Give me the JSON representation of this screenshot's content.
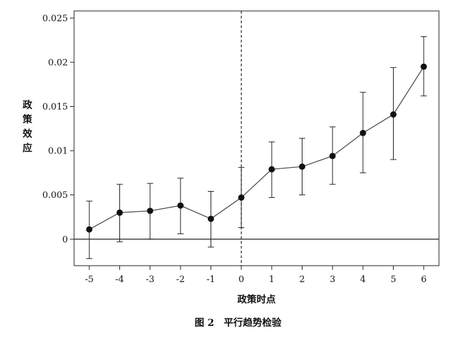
{
  "chart_data": {
    "type": "line",
    "caption": "图 2　平行趋势检验",
    "xlabel": "政策时点",
    "ylabel": "政策效应",
    "x": [
      -5,
      -4,
      -3,
      -2,
      -1,
      0,
      1,
      2,
      3,
      4,
      5,
      6
    ],
    "x_tick_labels": [
      "-5",
      "-4",
      "-3",
      "-2",
      "-1",
      "0",
      "1",
      "2",
      "3",
      "4",
      "5",
      "6"
    ],
    "y_ticks": [
      0,
      0.005,
      0.01,
      0.015,
      0.02,
      0.025
    ],
    "y_tick_labels": [
      "0",
      "0.005",
      "0.01",
      "0.015",
      "0.02",
      "0.025"
    ],
    "ylim": [
      -0.003,
      0.0258
    ],
    "xlim": [
      -5.5,
      6.5
    ],
    "series": [
      {
        "values": [
          0.0011,
          0.003,
          0.0032,
          0.0038,
          0.0023,
          0.0047,
          0.0079,
          0.0082,
          0.0094,
          0.012,
          0.0141,
          0.0195
        ],
        "ci_lower": [
          -0.0022,
          -0.0003,
          0.0,
          0.0006,
          -0.0009,
          0.0013,
          0.0047,
          0.005,
          0.0062,
          0.0075,
          0.009,
          0.0162
        ],
        "ci_upper": [
          0.0043,
          0.0062,
          0.0063,
          0.0069,
          0.0054,
          0.0081,
          0.011,
          0.0114,
          0.0127,
          0.0166,
          0.0194,
          0.0229
        ]
      }
    ],
    "reference_lines": {
      "horizontal_y": 0,
      "vertical_x": 0,
      "vertical_style": "dashed"
    },
    "grid": false,
    "legend": "none"
  }
}
